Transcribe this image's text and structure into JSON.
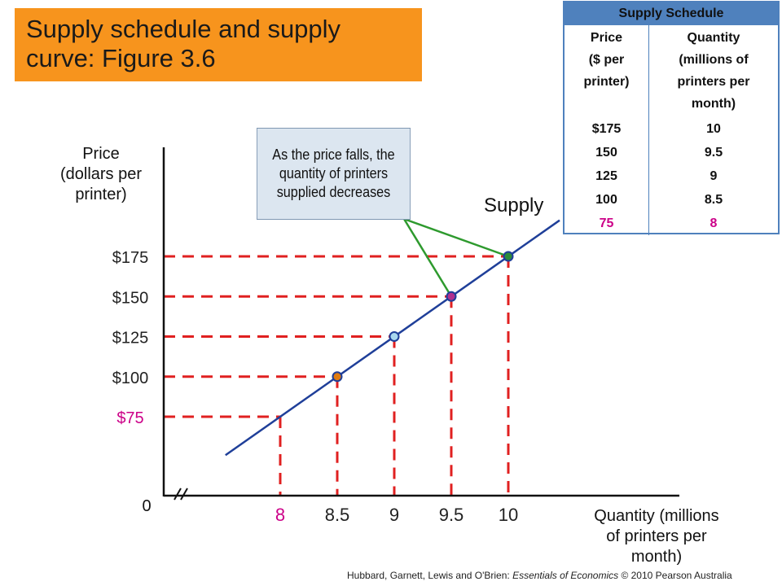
{
  "title": {
    "line1": "Supply schedule and supply",
    "line2": "curve: Figure 3.6"
  },
  "schedule": {
    "title": "Supply Schedule",
    "col1_header": [
      "Price",
      "($ per",
      "printer)"
    ],
    "col2_header": [
      "Quantity",
      "(millions of",
      "printers per",
      "month)"
    ],
    "rows": [
      {
        "price": "$175",
        "quantity": "10"
      },
      {
        "price": "150",
        "quantity": "9.5"
      },
      {
        "price": "125",
        "quantity": "9"
      },
      {
        "price": "100",
        "quantity": "8.5"
      },
      {
        "price": "75",
        "quantity": "8"
      }
    ],
    "highlight_color": "#cc0088",
    "header_color": "#4f81bd"
  },
  "note": {
    "text": "As the price falls, the quantity of printers supplied decreases"
  },
  "credit": {
    "prefix": "Hubbard, Garnett, Lewis and O'Brien: ",
    "book": "Essentials of Economics",
    "suffix": " © 2010 Pearson Australia"
  },
  "chart_data": {
    "type": "line",
    "series": [
      {
        "name": "Supply",
        "points": [
          {
            "x": 8,
            "y": 75
          },
          {
            "x": 8.5,
            "y": 100
          },
          {
            "x": 9,
            "y": 125
          },
          {
            "x": 9.5,
            "y": 150
          },
          {
            "x": 10,
            "y": 175
          }
        ]
      }
    ],
    "ylabel": [
      "Price",
      "(dollars per",
      "printer)"
    ],
    "xlabel": [
      "Quantity (millions",
      "of printers per",
      "month)"
    ],
    "y_ticks": [
      {
        "value": 175,
        "label": "$175",
        "color": "#222222"
      },
      {
        "value": 150,
        "label": "$150",
        "color": "#222222"
      },
      {
        "value": 125,
        "label": "$125",
        "color": "#222222"
      },
      {
        "value": 100,
        "label": "$100",
        "color": "#222222"
      },
      {
        "value": 75,
        "label": "$75",
        "color": "#cc0088"
      }
    ],
    "x_ticks": [
      {
        "value": 8,
        "label": "8",
        "color": "#cc0088"
      },
      {
        "value": 8.5,
        "label": "8.5",
        "color": "#222222"
      },
      {
        "value": 9,
        "label": "9",
        "color": "#222222"
      },
      {
        "value": 9.5,
        "label": "9.5",
        "color": "#222222"
      },
      {
        "value": 10,
        "label": "10",
        "color": "#222222"
      }
    ],
    "origin_label": "0",
    "axis_break": true,
    "point_colors": [
      "none",
      "#e07b10",
      "#a9d8ee",
      "#b0308f",
      "#2e8b3a"
    ],
    "line_color": "#1f3f99",
    "guide_color": "#e02020",
    "arrow_color": "#2e9a2e"
  }
}
